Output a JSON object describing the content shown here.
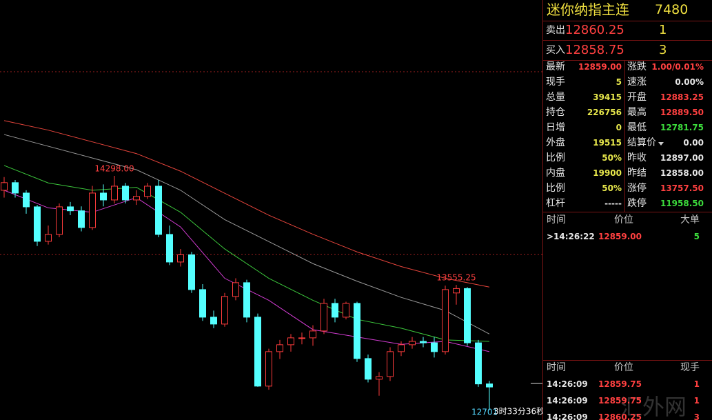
{
  "chart_data": {
    "type": "candlestick",
    "ylim": [
      12634,
      15497
    ],
    "candles": [
      [
        14200,
        14290,
        14150,
        14252
      ],
      [
        14252,
        14270,
        14150,
        14181
      ],
      [
        14181,
        14200,
        14040,
        14087
      ],
      [
        14087,
        14100,
        13820,
        13852
      ],
      [
        13852,
        13960,
        13830,
        13899
      ],
      [
        13899,
        14110,
        13880,
        14087
      ],
      [
        14087,
        14120,
        14030,
        14060
      ],
      [
        14060,
        14090,
        13920,
        13946
      ],
      [
        13946,
        14230,
        13930,
        14181
      ],
      [
        14181,
        14240,
        14090,
        14134
      ],
      [
        14134,
        14298,
        14110,
        14228
      ],
      [
        14228,
        14250,
        14110,
        14134
      ],
      [
        14134,
        14200,
        14100,
        14158
      ],
      [
        14158,
        14250,
        14140,
        14228
      ],
      [
        14228,
        14270,
        13880,
        13899
      ],
      [
        13899,
        13960,
        13690,
        13711
      ],
      [
        13711,
        13800,
        13680,
        13760
      ],
      [
        13760,
        13780,
        13500,
        13523
      ],
      [
        13523,
        13560,
        13310,
        13335
      ],
      [
        13335,
        13380,
        13260,
        13288
      ],
      [
        13288,
        13500,
        13270,
        13476
      ],
      [
        13476,
        13600,
        13450,
        13570
      ],
      [
        13570,
        13590,
        13300,
        13335
      ],
      [
        13335,
        13360,
        12860,
        12865
      ],
      [
        12865,
        13120,
        12840,
        13100
      ],
      [
        13100,
        13180,
        13050,
        13147
      ],
      [
        13147,
        13220,
        13100,
        13194
      ],
      [
        13194,
        13230,
        13150,
        13194
      ],
      [
        13194,
        13280,
        13140,
        13241
      ],
      [
        13241,
        13460,
        13220,
        13429
      ],
      [
        13429,
        13460,
        13300,
        13335
      ],
      [
        13335,
        13440,
        13320,
        13429
      ],
      [
        13429,
        13440,
        13030,
        13053
      ],
      [
        13053,
        13080,
        12890,
        12912
      ],
      [
        12912,
        12960,
        12800,
        12930
      ],
      [
        12930,
        13130,
        12900,
        13100
      ],
      [
        13100,
        13170,
        13070,
        13147
      ],
      [
        13147,
        13200,
        13120,
        13170
      ],
      [
        13170,
        13200,
        13130,
        13160
      ],
      [
        13160,
        13200,
        13060,
        13100
      ],
      [
        13100,
        13550,
        13080,
        13523
      ],
      [
        13500,
        13555,
        13420,
        13530
      ],
      [
        13530,
        13540,
        13140,
        13160
      ],
      [
        13160,
        13180,
        12860,
        12880
      ],
      [
        12880,
        12900,
        12701,
        12859
      ]
    ],
    "up_color": "#ff3c3c",
    "down_color": "#54ffff",
    "series": [
      {
        "color": "#e8453c",
        "x": [
          0,
          4,
          8,
          12,
          16,
          20,
          24,
          28,
          32,
          36,
          40,
          44
        ],
        "values": [
          14675,
          14610,
          14530,
          14450,
          14330,
          14180,
          14030,
          13900,
          13780,
          13680,
          13600,
          13540
        ]
      },
      {
        "color": "#9a9a9a",
        "x": [
          0,
          4,
          8,
          12,
          16,
          20,
          24,
          28,
          32,
          36,
          40,
          44
        ],
        "values": [
          14580,
          14500,
          14420,
          14340,
          14200,
          14000,
          13850,
          13700,
          13580,
          13470,
          13380,
          13220
        ]
      },
      {
        "color": "#3cc83c",
        "x": [
          0,
          4,
          8,
          12,
          16,
          20,
          24,
          28,
          32,
          36,
          40,
          44
        ],
        "values": [
          14369,
          14250,
          14200,
          14220,
          14050,
          13800,
          13600,
          13450,
          13320,
          13260,
          13180,
          13170
        ]
      },
      {
        "color": "#d23cd2",
        "x": [
          0,
          4,
          8,
          12,
          16,
          20,
          24,
          28,
          32,
          36,
          40,
          44
        ],
        "values": [
          14200,
          14080,
          14050,
          14150,
          13950,
          13600,
          13450,
          13250,
          13200,
          13150,
          13170,
          13100
        ]
      }
    ],
    "annotations": [
      "14298.00",
      "13555.25",
      "12701"
    ],
    "countdown": "3时33分36秒"
  },
  "panel": {
    "title": "迷你纳指主连",
    "code": "7480",
    "sell": {
      "label": "卖出",
      "price": "12860.25",
      "qty": "1"
    },
    "buy": {
      "label": "买入",
      "price": "12858.75",
      "qty": "3"
    },
    "stats": [
      [
        {
          "label": "最新",
          "value": "12859.00",
          "color": "#ff4040"
        },
        {
          "label": "涨跌",
          "value": "1.00/0.01%",
          "color": "#ff4040"
        }
      ],
      [
        {
          "label": "现手",
          "value": "5",
          "color": "#e8e84c"
        },
        {
          "label": "速涨",
          "value": "0.00%",
          "color": "#e6e6e6"
        }
      ],
      [
        {
          "label": "总量",
          "value": "39415",
          "color": "#e8e84c"
        },
        {
          "label": "开盘",
          "value": "12883.25",
          "color": "#ff4040"
        }
      ],
      [
        {
          "label": "持仓",
          "value": "226756",
          "color": "#e8e84c"
        },
        {
          "label": "最高",
          "value": "12889.50",
          "color": "#ff4040"
        }
      ],
      [
        {
          "label": "日增",
          "value": "0",
          "color": "#e8e84c"
        },
        {
          "label": "最低",
          "value": "12781.75",
          "color": "#3cdc3c"
        }
      ],
      [
        {
          "label": "外盘",
          "value": "19515",
          "color": "#e8e84c"
        },
        {
          "label": "结算价",
          "value": "0.00",
          "color": "#e6e6e6"
        }
      ],
      [
        {
          "label": "比例",
          "value": "50%",
          "color": "#e8e84c"
        },
        {
          "label": "昨收",
          "value": "12897.00",
          "color": "#e6e6e6"
        }
      ],
      [
        {
          "label": "内盘",
          "value": "19900",
          "color": "#e8e84c"
        },
        {
          "label": "昨结",
          "value": "12858.00",
          "color": "#e6e6e6"
        }
      ],
      [
        {
          "label": "比例",
          "value": "50%",
          "color": "#e8e84c"
        },
        {
          "label": "涨停",
          "value": "13757.50",
          "color": "#ff4040"
        }
      ],
      [
        {
          "label": "杠杆",
          "value": "-----",
          "color": "#e6e6e6"
        },
        {
          "label": "跌停",
          "value": "11958.50",
          "color": "#3cdc3c"
        }
      ]
    ],
    "big_ticks": {
      "headers": [
        "时间",
        "价位",
        "大单"
      ],
      "colors": [
        "#e6e6e6",
        "#ff4040",
        "#3cdc3c"
      ],
      "rows": [
        [
          ">14:26:22",
          "12859.00",
          "5"
        ]
      ]
    },
    "ticks": {
      "headers": [
        "时间",
        "价位",
        "现手"
      ],
      "colors": [
        "#e6e6e6",
        "#ff4040",
        "#ff4040"
      ],
      "rows": [
        [
          "14:26:09",
          "12859.75",
          "1"
        ],
        [
          "14:26:09",
          "12859.75",
          "1"
        ],
        [
          "14:26:09",
          "12860.25",
          "3"
        ]
      ]
    },
    "watermark": "汇外网"
  }
}
